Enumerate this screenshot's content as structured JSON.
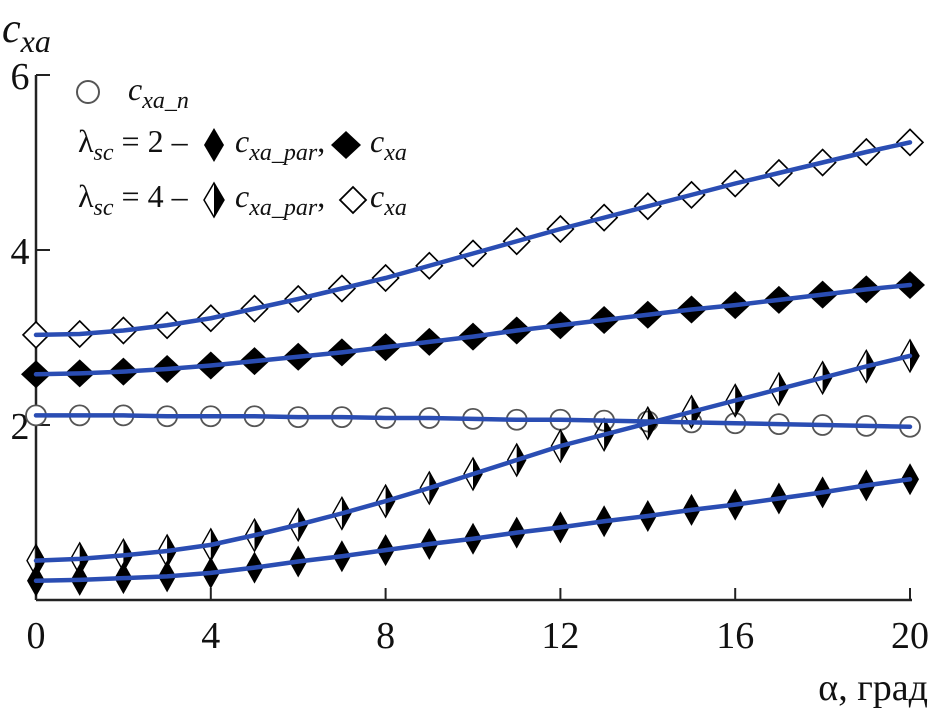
{
  "chart_data": {
    "type": "line",
    "ylabel": {
      "base": "c",
      "sub": "xa"
    },
    "xlabel": "α, град",
    "xlim": [
      0,
      20
    ],
    "ylim": [
      0,
      6
    ],
    "x_ticks": [
      "0",
      "4",
      "8",
      "12",
      "16",
      "20"
    ],
    "y_ticks": [
      "2",
      "4",
      "6"
    ],
    "legend_position": "top-left",
    "line_color": "#2a4db3",
    "x": [
      0,
      1,
      2,
      3,
      4,
      5,
      6,
      7,
      8,
      9,
      10,
      11,
      12,
      13,
      14,
      15,
      16,
      17,
      18,
      19,
      20
    ],
    "legend": {
      "row1": {
        "base": "c",
        "sub": "xa_n"
      },
      "row2": {
        "lambda": "λ",
        "lsub": "sc",
        "eq": " = 2 – ",
        "par_base": "c",
        "par_sub": "xa_par",
        "comma": ",",
        "cxa_base": "c",
        "cxa_sub": "xa"
      },
      "row3": {
        "lambda": "λ",
        "lsub": "sc",
        "eq": " = 4 – ",
        "par_base": "c",
        "par_sub": "xa_par",
        "comma": ",",
        "cxa_base": "c",
        "cxa_sub": "xa"
      }
    },
    "series": [
      {
        "name": "c_xa_n",
        "marker": "circle",
        "values": [
          2.11,
          2.11,
          2.11,
          2.1,
          2.1,
          2.1,
          2.09,
          2.09,
          2.08,
          2.08,
          2.07,
          2.06,
          2.06,
          2.05,
          2.04,
          2.03,
          2.02,
          2.01,
          2.0,
          1.99,
          1.98
        ]
      },
      {
        "name": "λsc=2 c_xa_par",
        "marker": "half-diamond-filled",
        "values": [
          0.22,
          0.23,
          0.25,
          0.27,
          0.31,
          0.37,
          0.44,
          0.5,
          0.57,
          0.64,
          0.7,
          0.77,
          0.83,
          0.9,
          0.96,
          1.03,
          1.09,
          1.16,
          1.23,
          1.31,
          1.38
        ]
      },
      {
        "name": "λsc=2 c_xa",
        "marker": "diamond-filled",
        "values": [
          2.58,
          2.59,
          2.61,
          2.64,
          2.68,
          2.73,
          2.78,
          2.83,
          2.89,
          2.95,
          3.01,
          3.08,
          3.14,
          3.2,
          3.26,
          3.32,
          3.37,
          3.43,
          3.49,
          3.55,
          3.6
        ]
      },
      {
        "name": "λsc=4 c_xa_par",
        "marker": "half-diamond-open",
        "values": [
          0.45,
          0.47,
          0.51,
          0.56,
          0.63,
          0.74,
          0.86,
          0.99,
          1.13,
          1.28,
          1.44,
          1.6,
          1.76,
          1.89,
          2.02,
          2.15,
          2.28,
          2.41,
          2.54,
          2.67,
          2.79
        ]
      },
      {
        "name": "λsc=4 c_xa",
        "marker": "diamond-open",
        "values": [
          3.03,
          3.04,
          3.08,
          3.14,
          3.22,
          3.33,
          3.44,
          3.56,
          3.68,
          3.82,
          3.96,
          4.1,
          4.24,
          4.37,
          4.5,
          4.63,
          4.76,
          4.88,
          5.0,
          5.12,
          5.23
        ]
      }
    ]
  }
}
